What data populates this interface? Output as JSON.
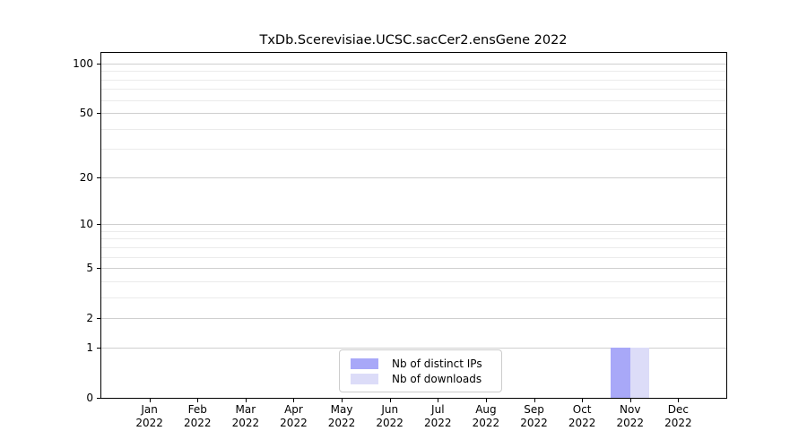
{
  "figure": {
    "background": "#ffffff",
    "title": "TxDb.Scerevisiae.UCSC.sacCer2.ensGene 2022"
  },
  "chart_data": {
    "type": "bar",
    "title": "TxDb.Scerevisiae.UCSC.sacCer2.ensGene 2022",
    "xlabel": "",
    "ylabel": "",
    "year": "2022",
    "categories": [
      "Jan",
      "Feb",
      "Mar",
      "Apr",
      "May",
      "Jun",
      "Jul",
      "Aug",
      "Sep",
      "Oct",
      "Nov",
      "Dec"
    ],
    "series": [
      {
        "name": "Nb of distinct IPs",
        "color": "#a8a8f8",
        "values": [
          0,
          0,
          0,
          0,
          0,
          0,
          0,
          0,
          0,
          0,
          1,
          0
        ]
      },
      {
        "name": "Nb of downloads",
        "color": "#dcdcf8",
        "values": [
          0,
          0,
          0,
          0,
          0,
          0,
          0,
          0,
          0,
          0,
          1,
          0
        ]
      }
    ],
    "yscale": "log1p",
    "ylim": [
      0,
      116
    ],
    "yticks": [
      0,
      1,
      2,
      5,
      10,
      20,
      50,
      100
    ],
    "gridlines": {
      "major_values": [
        1,
        2,
        5,
        10,
        20,
        50,
        100
      ],
      "minor_values": [
        3,
        4,
        6,
        7,
        8,
        9,
        30,
        40,
        60,
        70,
        80,
        90
      ],
      "major_color": "#cfcfcf",
      "minor_color": "#ebebeb"
    },
    "legend": {
      "position": "bottom-center",
      "entries": [
        "Nb of distinct IPs",
        "Nb of downloads"
      ]
    }
  }
}
